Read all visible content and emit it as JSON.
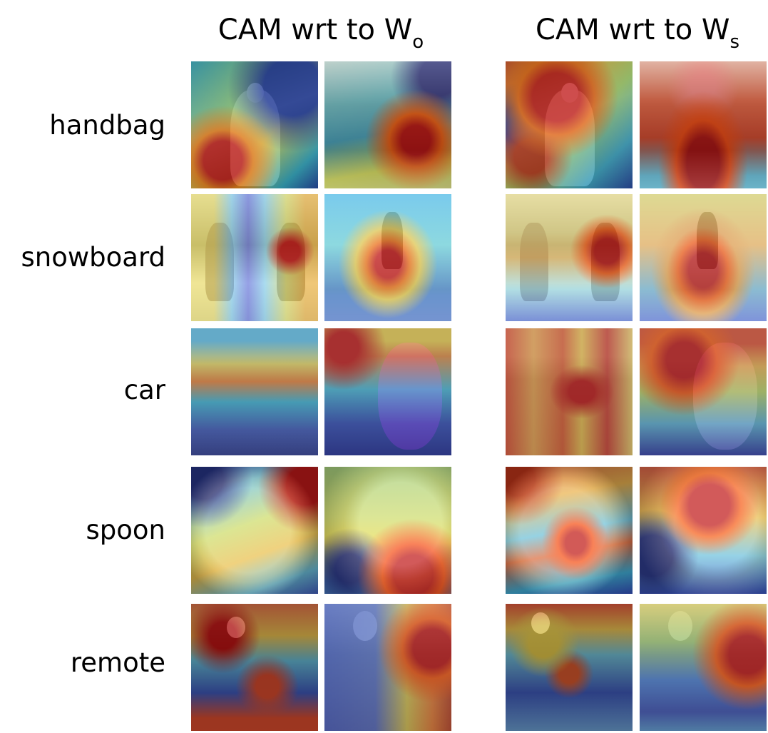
{
  "headers": {
    "left": {
      "main": "CAM wrt to W",
      "sub": "o"
    },
    "right": {
      "main": "CAM wrt to W",
      "sub": "s"
    }
  },
  "rows": [
    {
      "label": "handbag"
    },
    {
      "label": "snowboard"
    },
    {
      "label": "car"
    },
    {
      "label": "spoon"
    },
    {
      "label": "remote"
    }
  ]
}
